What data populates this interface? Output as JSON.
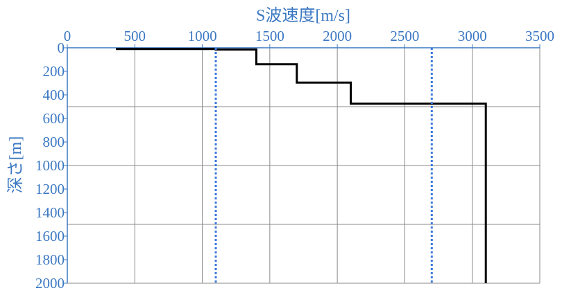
{
  "chart_data": {
    "type": "line",
    "title": "",
    "xlabel": "S波速度[m/s]",
    "ylabel": "深さ[m]",
    "x_axis_position": "top",
    "y_axis_inverted": true,
    "xlim": [
      0,
      3500
    ],
    "ylim": [
      0,
      2000
    ],
    "x_ticks": [
      0,
      500,
      1000,
      1500,
      2000,
      2500,
      3000,
      3500
    ],
    "y_ticks": [
      0,
      200,
      400,
      600,
      800,
      1000,
      1200,
      1400,
      1600,
      1800,
      2000
    ],
    "grid": {
      "vertical_every": 500,
      "horizontal_every": 500
    },
    "series": [
      {
        "style": "solid",
        "color": "#000000",
        "points": [
          [
            360,
            10
          ],
          [
            1100,
            10
          ],
          [
            1100,
            15
          ],
          [
            1400,
            15
          ],
          [
            1400,
            140
          ],
          [
            1700,
            140
          ],
          [
            1700,
            295
          ],
          [
            2100,
            295
          ],
          [
            2100,
            475
          ],
          [
            3100,
            475
          ],
          [
            3100,
            2000
          ]
        ]
      },
      {
        "style": "dotted",
        "color": "#3b78d8",
        "points": [
          [
            1100,
            0
          ],
          [
            1100,
            2000
          ]
        ]
      },
      {
        "style": "dotted",
        "color": "#3b78d8",
        "points": [
          [
            2700,
            0
          ],
          [
            2700,
            2000
          ]
        ]
      }
    ]
  }
}
